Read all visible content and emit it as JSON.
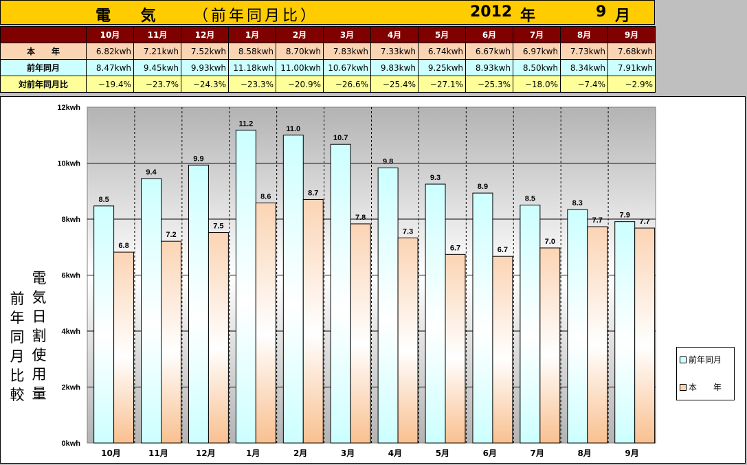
{
  "header": {
    "title": "電 気",
    "subtitle": "（前年同月比）",
    "year": "2012",
    "year_suffix": "年",
    "month": "9",
    "month_suffix": "月"
  },
  "table": {
    "months": [
      "10月",
      "11月",
      "12月",
      "1月",
      "2月",
      "3月",
      "4月",
      "5月",
      "6月",
      "7月",
      "8月",
      "9月"
    ],
    "rows": [
      {
        "label": "本　　年",
        "values": [
          "6.82kwh",
          "7.21kwh",
          "7.52kwh",
          "8.58kwh",
          "8.70kwh",
          "7.83kwh",
          "7.33kwh",
          "6.74kwh",
          "6.67kwh",
          "6.97kwh",
          "7.73kwh",
          "7.68kwh"
        ]
      },
      {
        "label": "前年同月",
        "values": [
          "8.47kwh",
          "9.45kwh",
          "9.93kwh",
          "11.18kwh",
          "11.00kwh",
          "10.67kwh",
          "9.83kwh",
          "9.25kwh",
          "8.93kwh",
          "8.50kwh",
          "8.34kwh",
          "7.91kwh"
        ]
      },
      {
        "label": "対前年同月比",
        "values": [
          "−19.4%",
          "−23.7%",
          "−24.3%",
          "−23.3%",
          "−20.9%",
          "−26.6%",
          "−25.4%",
          "−27.1%",
          "−25.3%",
          "−18.0%",
          "−7.4%",
          "−2.9%"
        ]
      }
    ]
  },
  "chart_data": {
    "type": "bar",
    "categories": [
      "10月",
      "11月",
      "12月",
      "1月",
      "2月",
      "3月",
      "4月",
      "5月",
      "6月",
      "7月",
      "8月",
      "9月"
    ],
    "series": [
      {
        "name": "前年同月",
        "values": [
          8.47,
          9.45,
          9.93,
          11.18,
          11.0,
          10.67,
          9.83,
          9.25,
          8.93,
          8.5,
          8.34,
          7.91
        ],
        "labels": [
          "8.5",
          "9.4",
          "9.9",
          "11.2",
          "11.0",
          "10.7",
          "9.8",
          "9.3",
          "8.9",
          "8.5",
          "8.3",
          "7.9"
        ],
        "color": "#ccffff"
      },
      {
        "name": "本　　年",
        "values": [
          6.82,
          7.21,
          7.52,
          8.58,
          8.7,
          7.83,
          7.33,
          6.74,
          6.67,
          6.97,
          7.73,
          7.68
        ],
        "labels": [
          "6.8",
          "7.2",
          "7.5",
          "8.6",
          "8.7",
          "7.8",
          "7.3",
          "6.7",
          "6.7",
          "7.0",
          "7.7",
          "7.7"
        ],
        "color": "#fbd4b4"
      }
    ],
    "ylim": [
      0,
      12
    ],
    "yticks": [
      0,
      2,
      4,
      6,
      8,
      10,
      12
    ],
    "ytick_labels": [
      "0kwh",
      "2kwh",
      "4kwh",
      "6kwh",
      "8kwh",
      "10kwh",
      "12kwh"
    ],
    "ylabel_outer": "前年同月比較",
    "ylabel_inner": "電気日割使用量",
    "legend_position": "right",
    "grid": true
  }
}
